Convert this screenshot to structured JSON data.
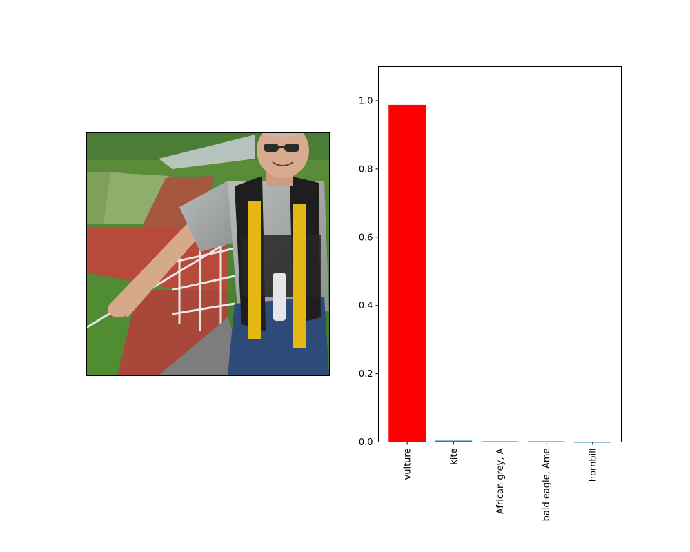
{
  "image_panel": {
    "description_icon": "photo-thumbnail"
  },
  "chart_data": {
    "type": "bar",
    "categories": [
      "vulture",
      "kite",
      "African grey, A",
      "bald eagle, Ame",
      "hornbill"
    ],
    "values": [
      0.988,
      0.004,
      0.002,
      0.002,
      0.0005
    ],
    "colors": [
      "#ff0000",
      "#1f77b4",
      "#1f77b4",
      "#1f77b4",
      "#1f77b4"
    ],
    "yticks": [
      "0.0",
      "0.2",
      "0.4",
      "0.6",
      "0.8",
      "1.0"
    ],
    "ytick_values": [
      0.0,
      0.2,
      0.4,
      0.6,
      0.8,
      1.0
    ],
    "ylim": [
      0,
      1.1
    ],
    "title": "",
    "xlabel": "",
    "ylabel": "",
    "grid": false
  }
}
